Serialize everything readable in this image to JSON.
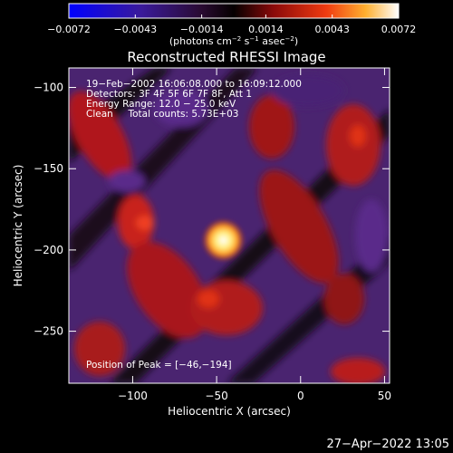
{
  "chart_data": {
    "type": "heatmap",
    "title": "Reconstructed RHESSI Image",
    "xlabel": "Heliocentric X (arcsec)",
    "ylabel": "Heliocentric Y (arcsec)",
    "xlim": [
      -138,
      53
    ],
    "ylim": [
      -282,
      -88
    ],
    "x_ticks": [
      -100,
      -50,
      0,
      50
    ],
    "x_tick_labels": [
      "−100",
      "−50",
      "0",
      "50"
    ],
    "y_ticks": [
      -100,
      -150,
      -200,
      -250
    ],
    "y_tick_labels": [
      "−100",
      "−150",
      "−200",
      "−250"
    ],
    "colorbar": {
      "range": [
        -0.0072,
        0.0072
      ],
      "ticks": [
        -0.0072,
        -0.0043,
        -0.0014,
        0.0014,
        0.0043,
        0.0072
      ],
      "tick_labels": [
        "−0.0072",
        "−0.0043",
        "−0.0014",
        "0.0014",
        "0.0043",
        "0.0072"
      ],
      "units_main": "(photons cm",
      "units_exp1": "−2",
      "units_mid1": " s",
      "units_exp2": "−1",
      "units_mid2": " asec",
      "units_exp3": "−2",
      "units_end": ")"
    },
    "annotations": [
      "19−Feb−2002 16:06:08.000 to 16:09:12.000",
      "Detectors: 3F 4F 5F 6F 7F 8F, Att 1",
      "Energy Range: 12.0 − 25.0 keV",
      "Clean     Total counts: 5.73E+03"
    ],
    "peak_label": "Position of Peak = [−46,−194]",
    "peak": {
      "x": -46,
      "y": -194,
      "value": 0.0072
    },
    "colors": {
      "background": "#000000",
      "negative": "#5a2a8a",
      "positive": "#c8201a",
      "peak": "#ffffff"
    }
  },
  "footer_timestamp": "27−Apr−2022 13:05"
}
